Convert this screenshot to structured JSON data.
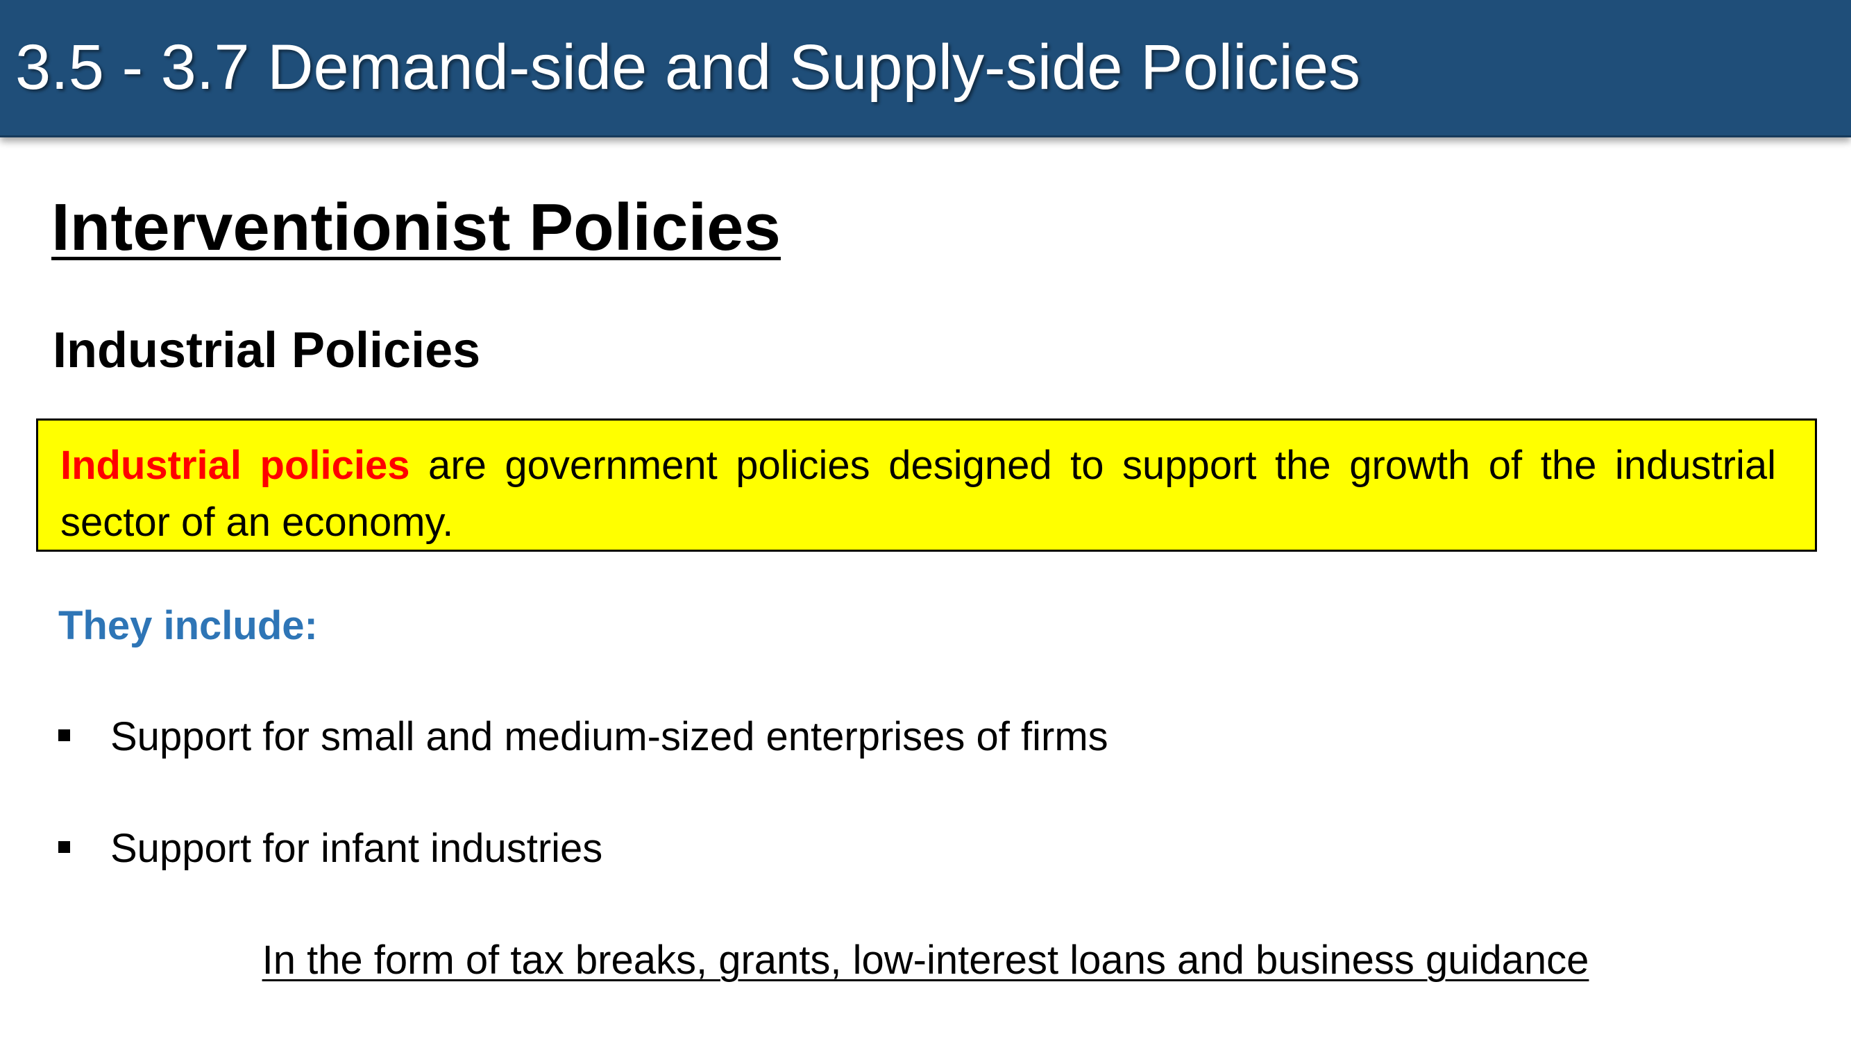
{
  "header": {
    "title": "3.5 - 3.7 Demand-side and Supply-side Policies"
  },
  "section": {
    "title": "Interventionist Policies",
    "subtitle": "Industrial Policies"
  },
  "definition": {
    "term": "Industrial policies",
    "text": " are government policies designed to support the growth of the industrial sector of an economy."
  },
  "includes": {
    "label": "They include:",
    "items": [
      "Support for small and medium-sized enterprises of firms",
      "Support for infant industries"
    ]
  },
  "footnote": "In the form of tax breaks, grants, low-interest loans and business guidance",
  "colors": {
    "header_bg": "#1f4e79",
    "definition_bg": "#ffff00",
    "term_color": "#ff0000",
    "label_color": "#2e75b6"
  },
  "icons": {
    "bullet": "square-bullet-icon"
  }
}
